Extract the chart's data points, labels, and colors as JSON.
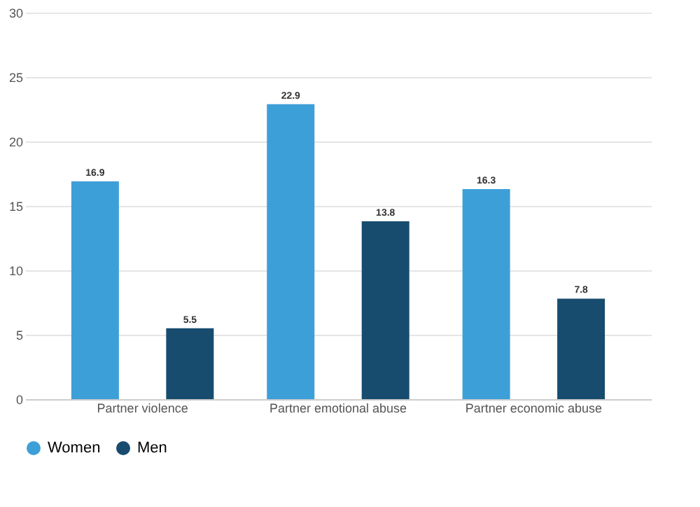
{
  "chart_data": {
    "type": "bar",
    "categories": [
      "Partner violence",
      "Partner emotional abuse",
      "Partner economic abuse"
    ],
    "series": [
      {
        "name": "Women",
        "color": "#3d9fd8",
        "values": [
          16.9,
          22.9,
          16.3
        ]
      },
      {
        "name": "Men",
        "color": "#174c6f",
        "values": [
          5.5,
          13.8,
          7.8
        ]
      }
    ],
    "ylim": [
      0,
      30
    ],
    "yticks": [
      0,
      5,
      10,
      15,
      20,
      25,
      30
    ],
    "grid": "y",
    "legend": "bottom",
    "data_labels": true
  }
}
